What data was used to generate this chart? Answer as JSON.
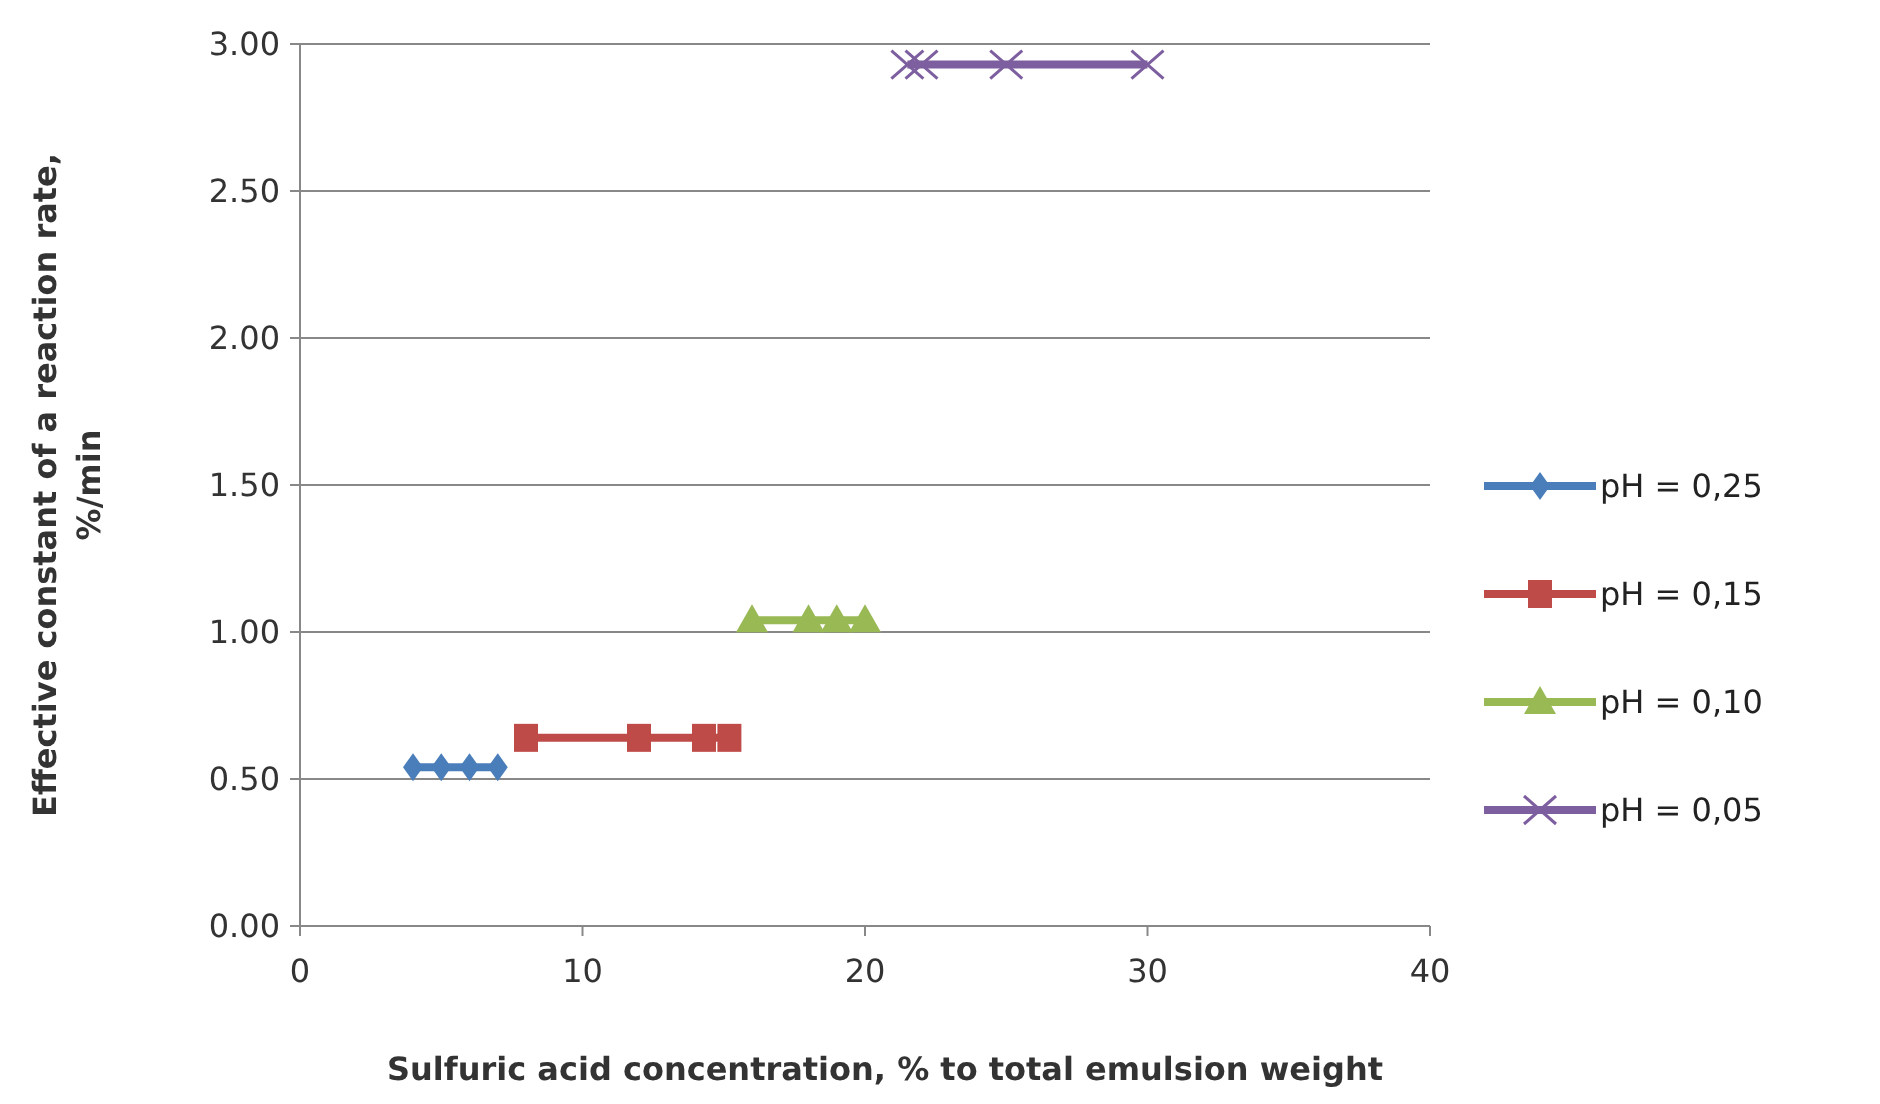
{
  "chart_data": {
    "type": "line",
    "xlabel": "Sulfuric acid concentration, % to total emulsion weight",
    "ylabel": "Effective constant of a reaction rate, %/min",
    "xlim": [
      0,
      40
    ],
    "xticks": [
      0,
      10,
      20,
      30,
      40
    ],
    "ylim": [
      0,
      3
    ],
    "yticks": [
      {
        "value": 0,
        "label": "0.00"
      },
      {
        "value": 0.5,
        "label": "0.50"
      },
      {
        "value": 1,
        "label": "1.00"
      },
      {
        "value": 1.5,
        "label": "1.50"
      },
      {
        "value": 2,
        "label": "2.00"
      },
      {
        "value": 2.5,
        "label": "2.50"
      },
      {
        "value": 3,
        "label": "3.00"
      }
    ],
    "grid": "y",
    "legend": "right",
    "series": [
      {
        "name": "pH = 0,25",
        "color": "#4a7ebb",
        "marker": "diamond",
        "x": [
          4,
          5,
          6,
          7
        ],
        "values": [
          0.54,
          0.54,
          0.54,
          0.54
        ]
      },
      {
        "name": "pH = 0,15",
        "color": "#be4b48",
        "marker": "square",
        "x": [
          8,
          12,
          14.3,
          15.2
        ],
        "values": [
          0.64,
          0.64,
          0.64,
          0.64
        ]
      },
      {
        "name": "pH = 0,10",
        "color": "#98b954",
        "marker": "triangle",
        "x": [
          16,
          18,
          19,
          20
        ],
        "values": [
          1.04,
          1.04,
          1.04,
          1.04
        ]
      },
      {
        "name": "pH = 0,05",
        "color": "#7d5fa0",
        "marker": "cross",
        "x": [
          21.5,
          22,
          25,
          30
        ],
        "values": [
          2.93,
          2.93,
          2.93,
          2.93
        ]
      }
    ]
  }
}
